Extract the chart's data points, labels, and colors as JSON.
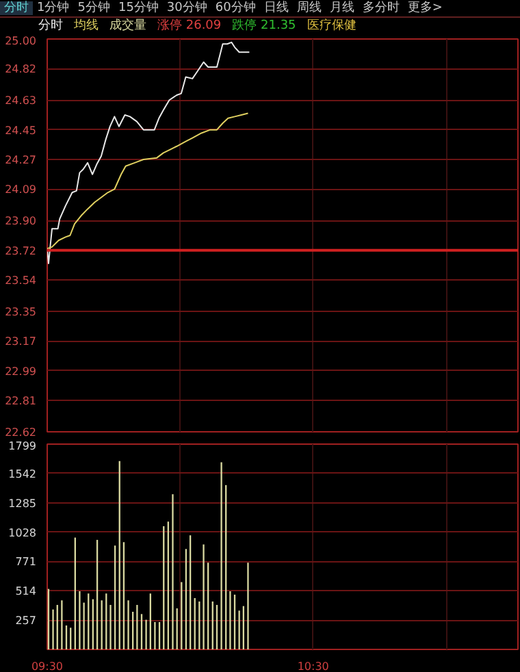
{
  "chart_data": [
    {
      "type": "line",
      "subtitle": "分时 1分钟 5分钟 15分钟 30分钟 60分钟 日线 周线 月线 多分时 更多>",
      "annotations": [
        "涨停 26.09",
        "跌停 21.35",
        "医疗保健"
      ],
      "legend": "top",
      "grid": true,
      "tick_labels": "y",
      "xlim": [
        9.5,
        11.27
      ],
      "xticks": [
        {
          "value": 9.5,
          "label": null
        },
        {
          "value": 10.0,
          "label": null
        },
        {
          "value": 10.5,
          "label": null
        },
        {
          "value": 11.0,
          "label": null
        }
      ],
      "ylim": [
        22.62,
        25.0
      ],
      "yticks": [
        22.62,
        22.81,
        22.99,
        23.17,
        23.35,
        23.54,
        23.72,
        {
          "value": 23.9,
          "label": "23.90"
        },
        24.09,
        24.27,
        24.45,
        24.63,
        24.82,
        {
          "value": 25.0,
          "label": "25.00"
        }
      ],
      "ref_lines": [
        {
          "axis": "y",
          "value": 23.72,
          "color": "#d02020"
        }
      ],
      "series": [
        {
          "name": "分时",
          "color": "#e8e8e8",
          "x": [
            9.5,
            9.505,
            9.518,
            9.54,
            9.547,
            9.569,
            9.594,
            9.61,
            9.622,
            9.635,
            9.652,
            9.67,
            9.686,
            9.703,
            9.72,
            9.736,
            9.753,
            9.77,
            9.792,
            9.811,
            9.837,
            9.862,
            9.878,
            9.903,
            9.92,
            9.937,
            9.959,
            9.987,
            10.004,
            10.021,
            10.046,
            10.063,
            10.088,
            10.105,
            10.138,
            10.16,
            10.177,
            10.193,
            10.205,
            10.222,
            10.238,
            10.26
          ],
          "values": [
            23.73,
            23.64,
            23.85,
            23.85,
            23.91,
            23.99,
            24.07,
            24.08,
            24.19,
            24.21,
            24.25,
            24.18,
            24.24,
            24.29,
            24.39,
            24.47,
            24.53,
            24.47,
            24.54,
            24.53,
            24.5,
            24.45,
            24.45,
            24.45,
            24.52,
            24.57,
            24.63,
            24.66,
            24.67,
            24.77,
            24.76,
            24.8,
            24.86,
            24.83,
            24.83,
            24.97,
            24.97,
            24.98,
            24.95,
            24.92,
            24.92,
            24.92
          ]
        },
        {
          "name": "均线",
          "color": "#e0d060",
          "x": [
            9.5,
            9.518,
            9.543,
            9.569,
            9.586,
            9.603,
            9.628,
            9.652,
            9.678,
            9.703,
            9.728,
            9.753,
            9.778,
            9.795,
            9.829,
            9.862,
            9.912,
            9.937,
            9.962,
            9.987,
            10.021,
            10.046,
            10.08,
            10.113,
            10.138,
            10.16,
            10.18,
            10.205,
            10.23,
            10.255
          ],
          "values": [
            23.73,
            23.74,
            23.78,
            23.8,
            23.81,
            23.88,
            23.93,
            23.97,
            24.01,
            24.04,
            24.07,
            24.09,
            24.18,
            24.23,
            24.25,
            24.27,
            24.28,
            24.31,
            24.33,
            24.35,
            24.38,
            24.4,
            24.43,
            24.45,
            24.45,
            24.49,
            24.52,
            24.53,
            24.54,
            24.55
          ]
        }
      ]
    },
    {
      "type": "bar",
      "legend": "top",
      "grid": true,
      "xlim": [
        9.5,
        11.27
      ],
      "xticks": [
        {
          "value": 9.5,
          "label": "09:30"
        },
        {
          "value": 10.0,
          "label": null
        },
        {
          "value": 10.5,
          "label": "10:30"
        },
        {
          "value": 11.0,
          "label": null
        }
      ],
      "ylim": [
        0,
        1799
      ],
      "yticks": [
        257,
        514,
        771,
        1028,
        1285,
        1542,
        1799
      ],
      "x": [
        9.505,
        9.522,
        9.538,
        9.555,
        9.572,
        9.588,
        9.605,
        9.622,
        9.638,
        9.655,
        9.672,
        9.688,
        9.705,
        9.722,
        9.738,
        9.755,
        9.772,
        9.788,
        9.805,
        9.822,
        9.838,
        9.855,
        9.872,
        9.888,
        9.905,
        9.922,
        9.938,
        9.955,
        9.972,
        9.988,
        10.005,
        10.022,
        10.038,
        10.055,
        10.072,
        10.088,
        10.105,
        10.122,
        10.138,
        10.155,
        10.172,
        10.188,
        10.205,
        10.222,
        10.238,
        10.255
      ],
      "series": [
        {
          "name": "成交量",
          "color": "#d8d8a0",
          "values": [
            530,
            350,
            390,
            430,
            210,
            190,
            980,
            510,
            410,
            490,
            440,
            960,
            430,
            490,
            390,
            910,
            1650,
            940,
            430,
            330,
            390,
            310,
            260,
            490,
            240,
            240,
            1080,
            1120,
            1360,
            360,
            590,
            880,
            1000,
            450,
            420,
            920,
            760,
            420,
            390,
            1640,
            1440,
            510,
            480,
            340,
            380,
            760
          ]
        }
      ]
    }
  ]
}
